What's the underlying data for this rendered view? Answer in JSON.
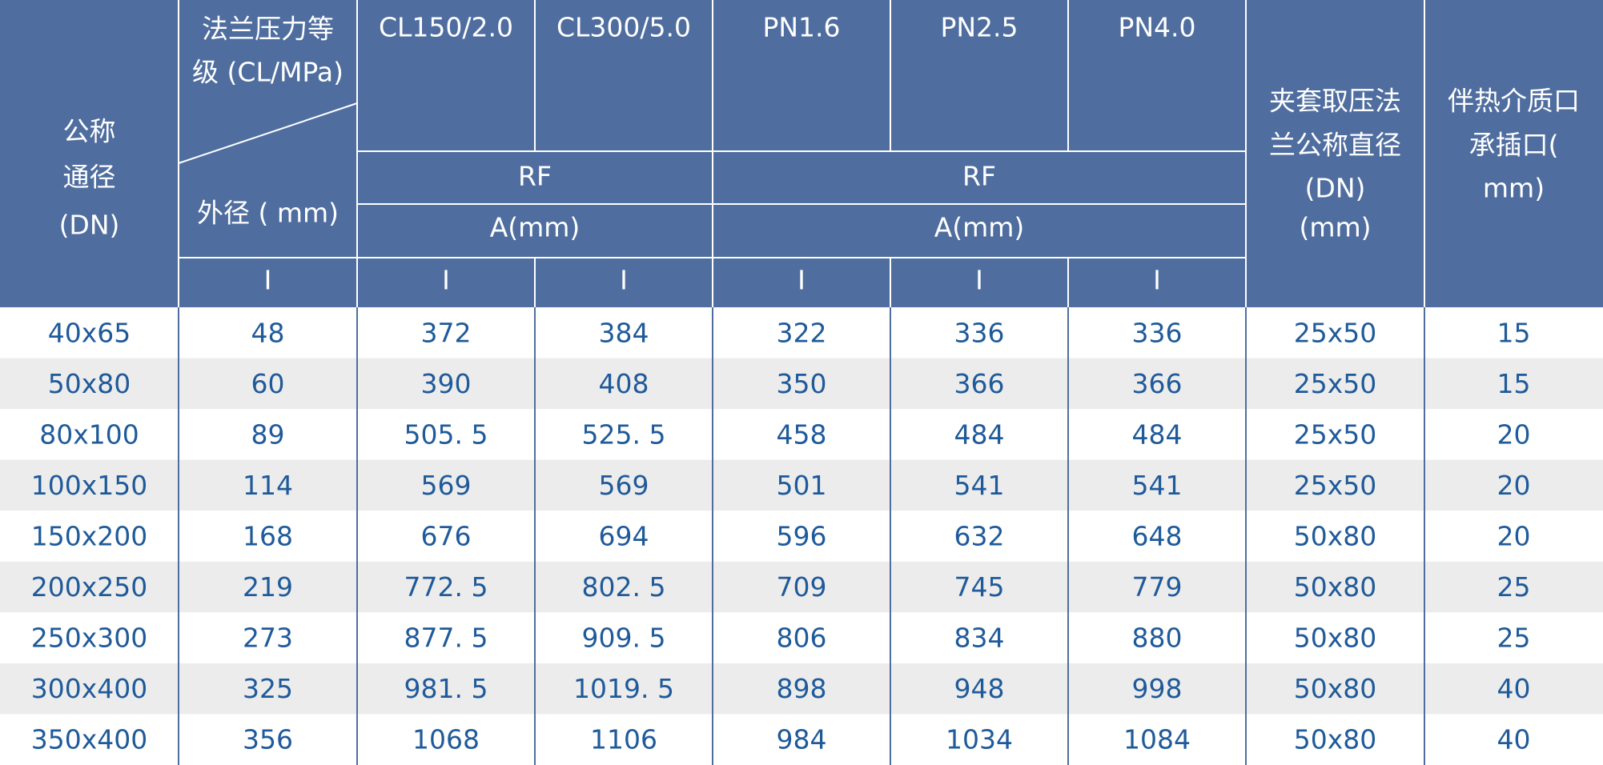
{
  "header": {
    "dn": [
      "公称",
      "通径",
      "(DN)"
    ],
    "corner_top": [
      "法兰压力等",
      "级 (CL/MPa)"
    ],
    "corner_bottom": "外径 ( mm)",
    "classes": [
      "CL150/2.0",
      "CL300/5.0",
      "PN1.6",
      "PN2.5",
      "PN4.0"
    ],
    "groups": [
      {
        "face": "RF",
        "unit": "A(mm)"
      },
      {
        "face": "RF",
        "unit": "A(mm)"
      }
    ],
    "types": [
      "I",
      "I",
      "I",
      "I",
      "I",
      "I"
    ],
    "jacket": [
      "夹套取压法",
      "兰公称直径",
      "(DN)",
      "(mm)"
    ],
    "tracing": [
      "伴热介质口",
      "承插口(",
      "mm)"
    ]
  },
  "rows": [
    [
      "40x65",
      "48",
      "372",
      "384",
      "322",
      "336",
      "336",
      "25x50",
      "15"
    ],
    [
      "50x80",
      "60",
      "390",
      "408",
      "350",
      "366",
      "366",
      "25x50",
      "15"
    ],
    [
      "80x100",
      "89",
      "505. 5",
      "525. 5",
      "458",
      "484",
      "484",
      "25x50",
      "20"
    ],
    [
      "100x150",
      "114",
      "569",
      "569",
      "501",
      "541",
      "541",
      "25x50",
      "20"
    ],
    [
      "150x200",
      "168",
      "676",
      "694",
      "596",
      "632",
      "648",
      "50x80",
      "20"
    ],
    [
      "200x250",
      "219",
      "772. 5",
      "802. 5",
      "709",
      "745",
      "779",
      "50x80",
      "25"
    ],
    [
      "250x300",
      "273",
      "877. 5",
      "909. 5",
      "806",
      "834",
      "880",
      "50x80",
      "25"
    ],
    [
      "300x400",
      "325",
      "981. 5",
      "1019. 5",
      "898",
      "948",
      "998",
      "50x80",
      "40"
    ],
    [
      "350x400",
      "356",
      "1068",
      "1106",
      "984",
      "1034",
      "1084",
      "50x80",
      "40"
    ]
  ]
}
